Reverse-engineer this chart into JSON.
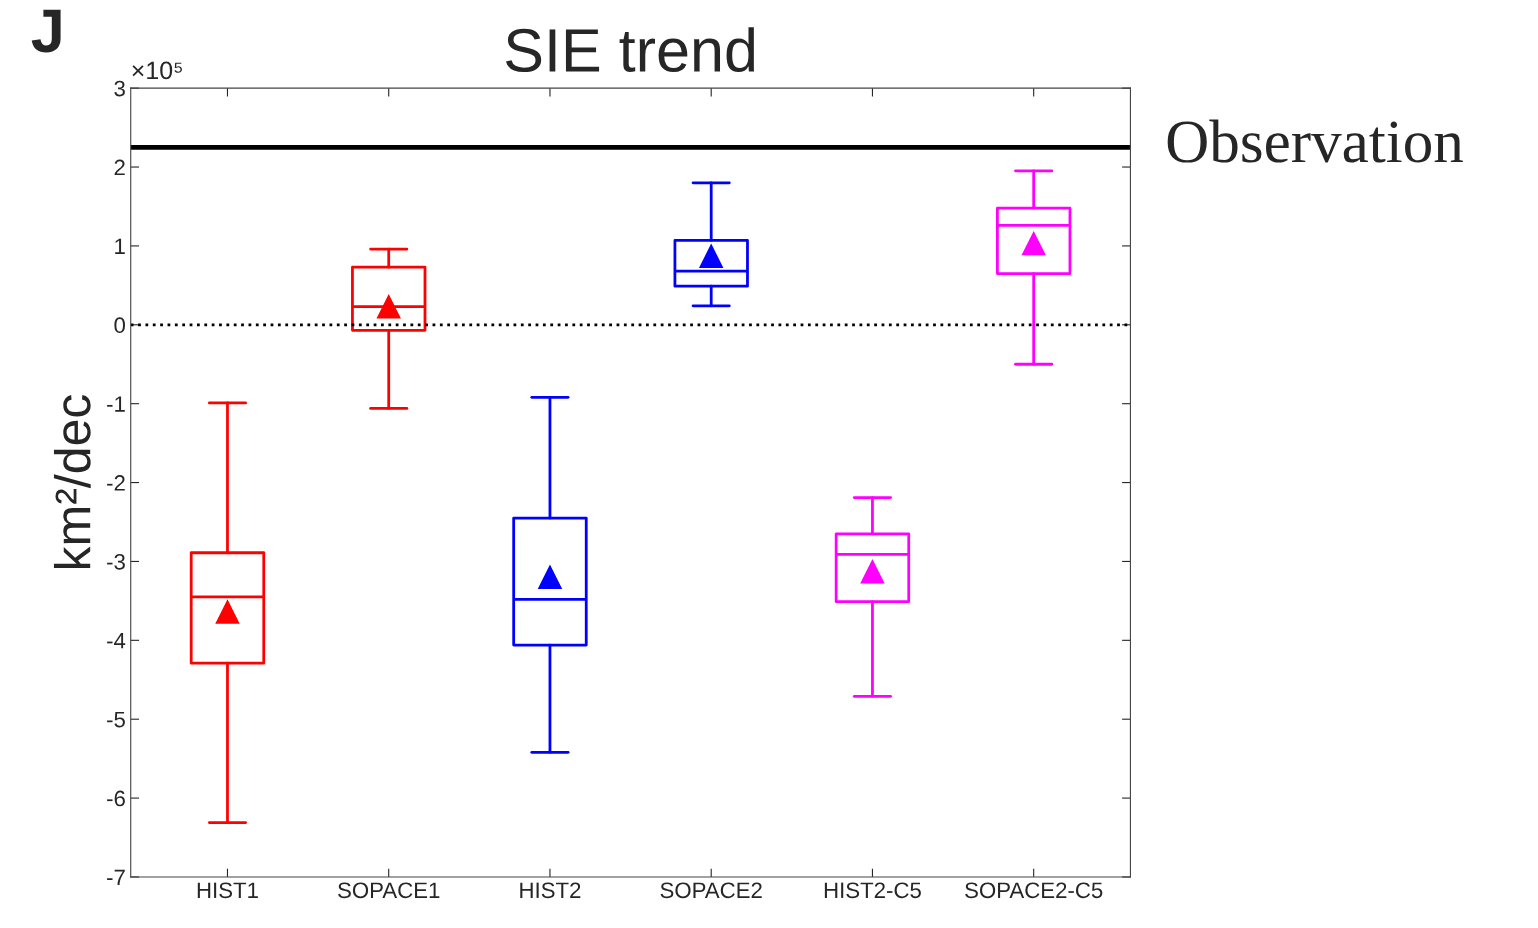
{
  "chart_data": {
    "type": "box",
    "title": "SIE trend",
    "ylabel": "km²/dec",
    "annotations": [
      "J",
      "×10⁵"
    ],
    "categories": [
      "HIST1",
      "SOPACE1",
      "HIST2",
      "SOPACE2",
      "HIST2-C5",
      "SOPACE2-C5"
    ],
    "colors": [
      "#ff0000",
      "#ff0000",
      "#0000ff",
      "#0000ff",
      "#ff00ff",
      "#ff00ff"
    ],
    "boxes": [
      {
        "low": -6.31,
        "q1": -4.29,
        "median": -3.45,
        "q3": -2.89,
        "high": -0.99,
        "mean": -3.64
      },
      {
        "low": -1.06,
        "q1": -0.07,
        "median": 0.23,
        "q3": 0.73,
        "high": 0.96,
        "mean": 0.23
      },
      {
        "low": -5.42,
        "q1": -4.06,
        "median": -3.48,
        "q3": -2.45,
        "high": -0.92,
        "mean": -3.2
      },
      {
        "low": 0.24,
        "q1": 0.49,
        "median": 0.68,
        "q3": 1.07,
        "high": 1.8,
        "mean": 0.87
      },
      {
        "low": -4.71,
        "q1": -3.51,
        "median": -2.91,
        "q3": -2.65,
        "high": -2.19,
        "mean": -3.13
      },
      {
        "low": -0.5,
        "q1": 0.65,
        "median": 1.26,
        "q3": 1.48,
        "high": 1.95,
        "mean": 1.03
      }
    ],
    "marker": "triangle",
    "ylim": [
      -7,
      3
    ],
    "yticks": [
      -7,
      -6,
      -5,
      -4,
      -3,
      -2,
      -1,
      0,
      1,
      2,
      3
    ],
    "ref_lines": [
      {
        "axis": "y",
        "value": 2.25,
        "label": "Observation",
        "color": "#000000",
        "line_style": "solid"
      },
      {
        "axis": "y",
        "value": 0,
        "color": "#000000",
        "line_style": "dotted"
      }
    ],
    "grid": false,
    "legend": false
  }
}
